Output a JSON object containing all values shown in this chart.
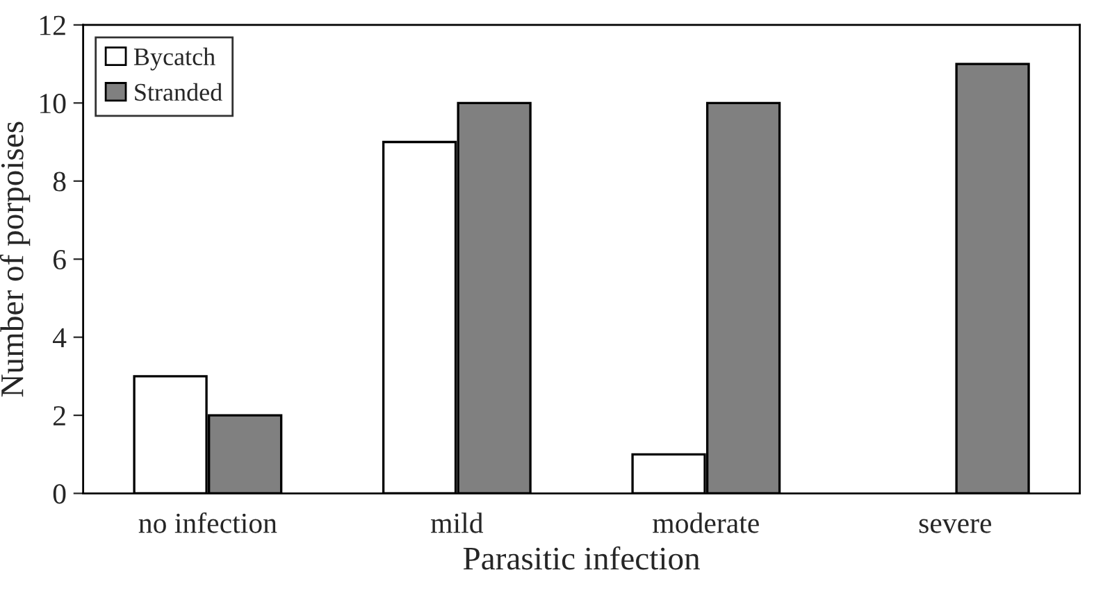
{
  "chart_data": {
    "type": "bar",
    "xlabel": "Parasitic infection",
    "ylabel": "Number of porpoises",
    "categories": [
      "no infection",
      "mild",
      "moderate",
      "severe"
    ],
    "series": [
      {
        "name": "Bycatch",
        "color": "#ffffff",
        "values": [
          3,
          9,
          1,
          0
        ]
      },
      {
        "name": "Stranded",
        "color": "#808080",
        "values": [
          2,
          10,
          10,
          11
        ]
      }
    ],
    "ylim": [
      0,
      12
    ],
    "yticks": [
      0,
      2,
      4,
      6,
      8,
      10,
      12
    ],
    "grid": false,
    "legend": "top left"
  }
}
